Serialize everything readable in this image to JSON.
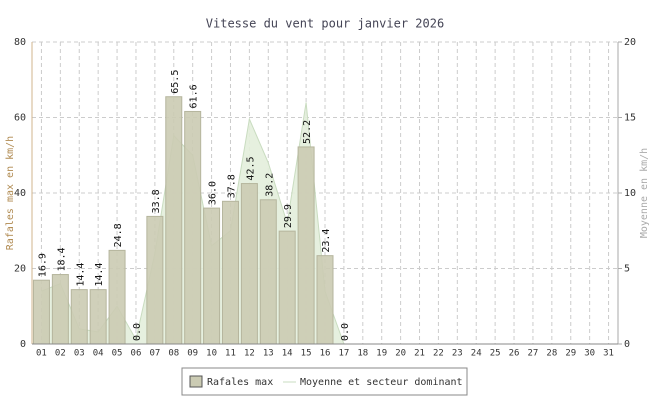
{
  "chart_data": {
    "type": "bar",
    "title": "Vitesse du vent pour janvier 2026",
    "y_label": "Rafales max en km/h",
    "y2_label": "Moyenne en km/h",
    "categories": [
      "01",
      "02",
      "03",
      "04",
      "05",
      "06",
      "07",
      "08",
      "09",
      "10",
      "11",
      "12",
      "13",
      "14",
      "15",
      "16",
      "17",
      "18",
      "19",
      "20",
      "21",
      "22",
      "23",
      "24",
      "25",
      "26",
      "27",
      "28",
      "29",
      "30",
      "31"
    ],
    "series": [
      {
        "name": "Rafales max",
        "color": "#cbcbb3",
        "type": "bar",
        "values": [
          16.9,
          18.4,
          14.4,
          14.4,
          24.8,
          0.0,
          33.8,
          65.5,
          61.6,
          36.0,
          37.8,
          42.5,
          38.2,
          29.9,
          52.2,
          23.4,
          0.0,
          null,
          null,
          null,
          null,
          null,
          null,
          null,
          null,
          null,
          null,
          null,
          null,
          null,
          null
        ],
        "value_labels": [
          "16.9",
          "18.4",
          "14.4",
          "14.4",
          "24.8",
          "0.0",
          "33.8",
          "65.5",
          "61.6",
          "36.0",
          "37.8",
          "42.5",
          "38.2",
          "29.9",
          "52.2",
          "23.4",
          "0.0",
          null,
          null,
          null,
          null,
          null,
          null,
          null,
          null,
          null,
          null,
          null,
          null,
          null,
          null
        ]
      },
      {
        "name": "Moyenne et secteur dominant",
        "color": "#e3eedb",
        "type": "area",
        "axis": "y2",
        "values": [
          3.5,
          4.0,
          1.0,
          0.8,
          2.5,
          0.3,
          6.0,
          13.8,
          12.5,
          6.5,
          7.5,
          14.9,
          12.0,
          8.0,
          16.0,
          3.5,
          0.0,
          null,
          null,
          null,
          null,
          null,
          null,
          null,
          null,
          null,
          null,
          null,
          null,
          null,
          null
        ]
      }
    ],
    "ylim": [
      0,
      80
    ],
    "yticks": [
      0,
      20,
      40,
      60,
      80
    ],
    "y2lim": [
      0,
      20
    ],
    "y2ticks": [
      0,
      5,
      10,
      15,
      20
    ],
    "grid": true,
    "legend": "bottom"
  }
}
